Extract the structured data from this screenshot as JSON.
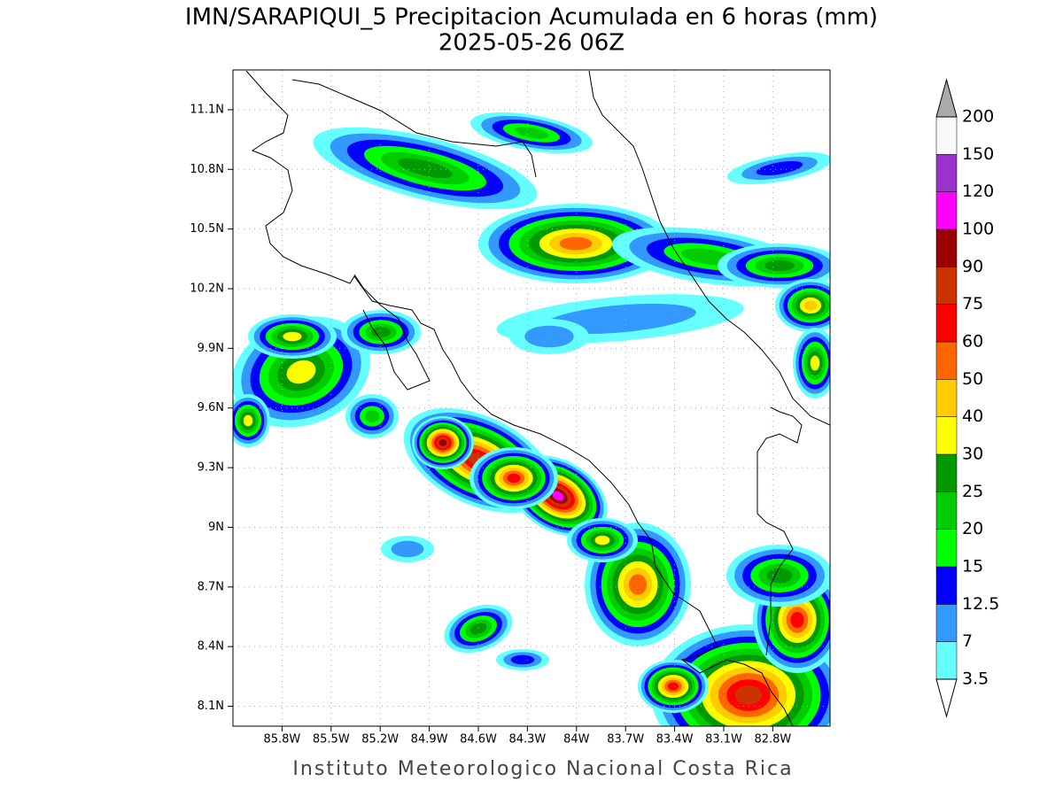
{
  "title": "IMN/SARAPIQUI_5 Precipitacion Acumulada en 6 horas (mm)",
  "subtitle": "2025-05-26 06Z",
  "footer": "Instituto Meteorologico Nacional Costa Rica",
  "map": {
    "lat_range": [
      8.0,
      11.3
    ],
    "lon_range": [
      -86.1,
      -82.45
    ],
    "grid": true,
    "lat_ticks": [
      {
        "value": 11.1,
        "label": "11.1N"
      },
      {
        "value": 10.8,
        "label": "10.8N"
      },
      {
        "value": 10.5,
        "label": "10.5N"
      },
      {
        "value": 10.2,
        "label": "10.2N"
      },
      {
        "value": 9.9,
        "label": "9.9N"
      },
      {
        "value": 9.6,
        "label": "9.6N"
      },
      {
        "value": 9.3,
        "label": "9.3N"
      },
      {
        "value": 9,
        "label": "9N"
      },
      {
        "value": 8.7,
        "label": "8.7N"
      },
      {
        "value": 8.4,
        "label": "8.4N"
      },
      {
        "value": 8.1,
        "label": "8.1N"
      }
    ],
    "lon_ticks": [
      {
        "value": -85.8,
        "label": "85.8W"
      },
      {
        "value": -85.5,
        "label": "85.5W"
      },
      {
        "value": -85.2,
        "label": "85.2W"
      },
      {
        "value": -84.9,
        "label": "84.9W"
      },
      {
        "value": -84.6,
        "label": "84.6W"
      },
      {
        "value": -84.3,
        "label": "84.3W"
      },
      {
        "value": -84,
        "label": "84W"
      },
      {
        "value": -83.7,
        "label": "83.7W"
      },
      {
        "value": -83.4,
        "label": "83.4W"
      },
      {
        "value": -83.1,
        "label": "83.1W"
      },
      {
        "value": -82.8,
        "label": "82.8W"
      }
    ]
  },
  "colorbar": {
    "levels": [
      3.5,
      7,
      12.5,
      15,
      20,
      25,
      30,
      40,
      50,
      60,
      75,
      90,
      100,
      120,
      150,
      200
    ],
    "colors": [
      "#66ffff",
      "#3399ff",
      "#0000ff",
      "#00ff00",
      "#00cc00",
      "#009900",
      "#ffff00",
      "#ffcc00",
      "#ff6600",
      "#ff0000",
      "#cc3300",
      "#990000",
      "#ff00ff",
      "#9933cc",
      "#f8f8f8"
    ],
    "under_color": "#ffffff",
    "over_color": "#aaaaaa"
  }
}
